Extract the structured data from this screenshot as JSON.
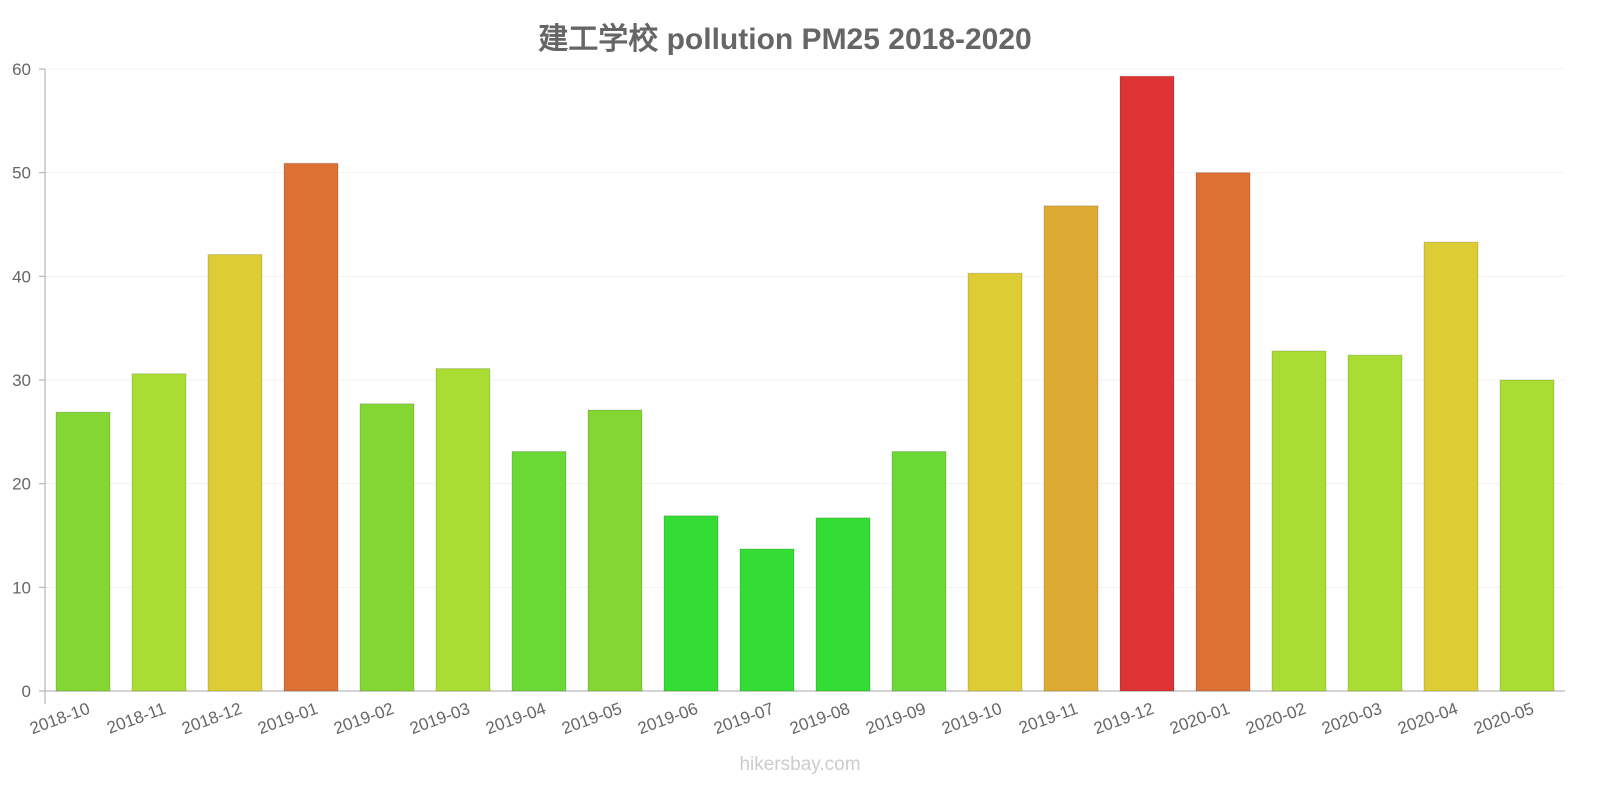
{
  "chart_data": {
    "type": "bar",
    "title": "建工学校 pollution PM25 2018-2020",
    "xlabel": "",
    "ylabel": "",
    "ylim": [
      0,
      60
    ],
    "yticks": [
      0,
      10,
      20,
      30,
      40,
      50,
      60
    ],
    "grid": true,
    "legend": "none",
    "categories": [
      "2018-10",
      "2018-11",
      "2018-12",
      "2019-01",
      "2019-02",
      "2019-03",
      "2019-04",
      "2019-05",
      "2019-06",
      "2019-07",
      "2019-08",
      "2019-09",
      "2019-10",
      "2019-11",
      "2019-12",
      "2020-01",
      "2020-02",
      "2020-03",
      "2020-04",
      "2020-05"
    ],
    "values": [
      26.9,
      30.6,
      42.1,
      50.9,
      27.7,
      31.1,
      23.1,
      27.1,
      16.9,
      13.7,
      16.7,
      23.1,
      40.3,
      46.8,
      59.3,
      50.0,
      32.8,
      32.4,
      43.3,
      30.0
    ],
    "colors": [
      "#84d633",
      "#aadd33",
      "#ddcc33",
      "#dd7033",
      "#84d633",
      "#aadd33",
      "#6bd935",
      "#84d633",
      "#33dd33",
      "#33dd33",
      "#33dd33",
      "#6bd935",
      "#ddcc33",
      "#ddaa33",
      "#dd3333",
      "#dd7033",
      "#aadd33",
      "#aadd33",
      "#ddcc33",
      "#aadd33"
    ]
  },
  "credit": "hikersbay.com"
}
